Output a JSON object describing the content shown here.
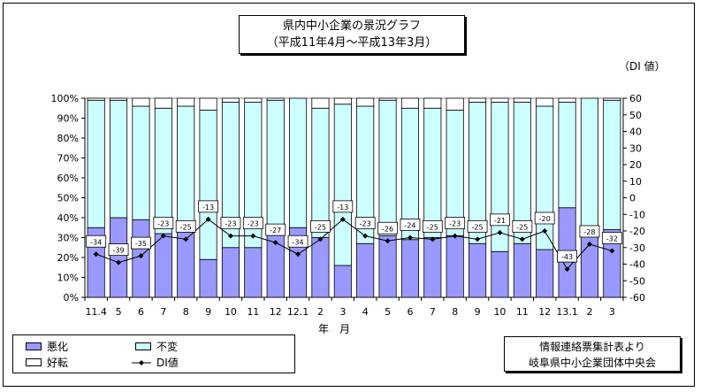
{
  "title": {
    "line1": "県内中小企業の景況グラフ",
    "line2": "（平成11年4月～平成13年3月）"
  },
  "unit_label": "（DI 値）",
  "source": {
    "line1": "情報連絡票集計表より",
    "line2": "岐阜県中小企業団体中央会"
  },
  "legend": {
    "worse": "悪化",
    "unchanged": "不変",
    "better": "好転",
    "di": "DI値"
  },
  "colors": {
    "worse": "#9999ff",
    "unchanged": "#ccffff",
    "better": "#ffffff",
    "line": "#000000"
  },
  "chart_data": {
    "type": "bar",
    "stacked": true,
    "xlabel": "年　月",
    "categories": [
      "11.4",
      "5",
      "6",
      "7",
      "8",
      "9",
      "10",
      "11",
      "12",
      "12.1",
      "2",
      "3",
      "4",
      "5",
      "6",
      "7",
      "8",
      "9",
      "10",
      "11",
      "12",
      "13.1",
      "2",
      "3"
    ],
    "y_left": {
      "min": 0,
      "max": 100,
      "step": 10,
      "tick_suffix": "%"
    },
    "y_right": {
      "min": -60,
      "max": 60,
      "step": 10
    },
    "grid": false,
    "series": [
      {
        "name": "悪化",
        "axis": "left",
        "values": [
          35,
          40,
          39,
          32,
          33,
          19,
          25,
          25,
          33,
          35,
          30,
          16,
          27,
          31,
          29,
          30,
          31,
          27,
          23,
          27,
          24,
          45,
          31,
          34
        ]
      },
      {
        "name": "不変",
        "axis": "left",
        "values": [
          64,
          59,
          57,
          63,
          63,
          75,
          73,
          73,
          66,
          65,
          65,
          81,
          69,
          68,
          66,
          65,
          63,
          71,
          75,
          71,
          72,
          53,
          69,
          65
        ]
      },
      {
        "name": "好転",
        "axis": "left",
        "values": [
          1,
          1,
          4,
          5,
          4,
          6,
          2,
          2,
          1,
          0,
          5,
          3,
          4,
          1,
          5,
          5,
          6,
          2,
          2,
          2,
          4,
          2,
          0,
          1
        ]
      },
      {
        "name": "DI値",
        "type": "line",
        "axis": "right",
        "values": [
          -34,
          -39,
          -35,
          -23,
          -25,
          -13,
          -23,
          -23,
          -27,
          -34,
          -25,
          -13,
          -23,
          -26,
          -24,
          -25,
          -23,
          -25,
          -21,
          -25,
          -20,
          -43,
          -28,
          -32
        ]
      }
    ],
    "legend_position": "bottom-left"
  }
}
